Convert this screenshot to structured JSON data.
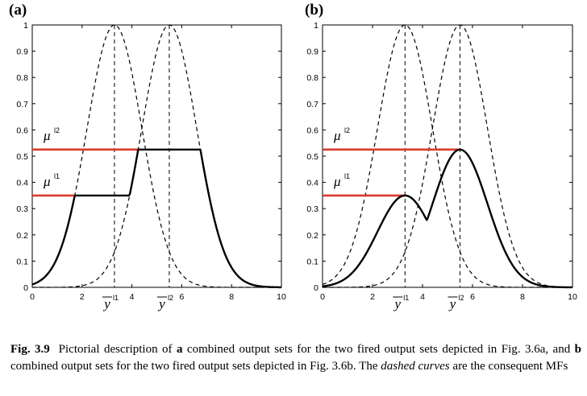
{
  "chart_data": [
    {
      "panel": "(a)",
      "type": "line",
      "xlim": [
        0,
        10
      ],
      "ylim": [
        0,
        1
      ],
      "xticks": [
        "0",
        "2",
        "4",
        "6",
        "8",
        "10"
      ],
      "yticks": [
        "0",
        "0.1",
        "0.2",
        "0.3",
        "0.4",
        "0.5",
        "0.6",
        "0.7",
        "0.8",
        "0.9",
        "1"
      ],
      "consequent_mfs": [
        {
          "center": 3.3,
          "spread": 1.1
        },
        {
          "center": 5.5,
          "spread": 1.1
        }
      ],
      "firing_levels": [
        {
          "label": "μ",
          "sup": "l1",
          "value": 0.35
        },
        {
          "label": "μ",
          "sup": "l2",
          "value": 0.525
        }
      ],
      "centroid_markers": [
        {
          "label": "y",
          "sup": "l1",
          "x": 3.3
        },
        {
          "label": "y",
          "sup": "l2",
          "x": 5.5
        }
      ],
      "combination": "max"
    },
    {
      "panel": "(b)",
      "type": "line",
      "xlim": [
        0,
        10
      ],
      "ylim": [
        0,
        1
      ],
      "xticks": [
        "0",
        "2",
        "4",
        "6",
        "8",
        "10"
      ],
      "yticks": [
        "0",
        "0.1",
        "0.2",
        "0.3",
        "0.4",
        "0.5",
        "0.6",
        "0.7",
        "0.8",
        "0.9",
        "1"
      ],
      "consequent_mfs": [
        {
          "center": 3.3,
          "spread": 1.1
        },
        {
          "center": 5.5,
          "spread": 1.1
        }
      ],
      "firing_levels": [
        {
          "label": "μ",
          "sup": "l1",
          "value": 0.35
        },
        {
          "label": "μ",
          "sup": "l2",
          "value": 0.525
        }
      ],
      "centroid_markers": [
        {
          "label": "y",
          "sup": "l1",
          "x": 3.3
        },
        {
          "label": "y",
          "sup": "l2",
          "x": 5.5
        }
      ],
      "combination": "product"
    }
  ],
  "caption": {
    "fig_label": "Fig. 3.9",
    "part1": "Pictorial description of ",
    "a": "a",
    "part2": " combined output sets for the two fired output sets depicted in Fig. 3.6a, and ",
    "b": "b",
    "part3": " combined output sets for the two fired output sets depicted in Fig. 3.6b. The ",
    "dashed": "dashed curves",
    "part4": " are the consequent MFs"
  },
  "colors": {
    "firing_line": "#d93a2b",
    "curve": "#000000",
    "frame": "#000000"
  }
}
